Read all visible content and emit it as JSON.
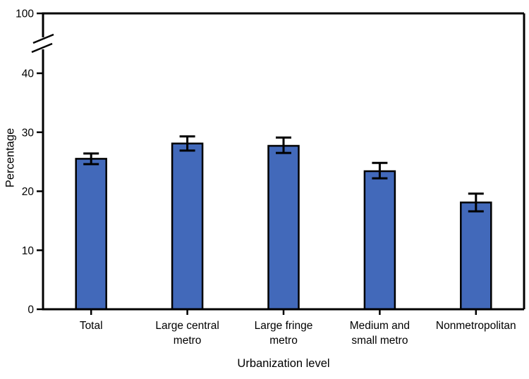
{
  "figure": {
    "background": "#ffffff",
    "bar_fill": "#4269BA",
    "bar_border": "#000000",
    "axis_color": "#000000",
    "text_color": "#000000"
  },
  "chart_data": {
    "type": "bar",
    "xlabel": "Urbanization level",
    "ylabel": "Percentage",
    "categories": [
      "Total",
      "Large central metro",
      "Large fringe metro",
      "Medium and small metro",
      "Nonmetropolitan"
    ],
    "category_label_lines": [
      [
        "Total"
      ],
      [
        "Large central",
        "metro"
      ],
      [
        "Large fringe",
        "metro"
      ],
      [
        "Medium and",
        "small metro"
      ],
      [
        "Nonmetropolitan"
      ]
    ],
    "values": [
      25.5,
      28.1,
      27.7,
      23.4,
      18.1
    ],
    "error_low": [
      24.6,
      26.9,
      26.5,
      22.2,
      16.6
    ],
    "error_high": [
      26.4,
      29.3,
      29.1,
      24.8,
      19.6
    ],
    "y_axis": {
      "ticks": [
        0,
        10,
        20,
        30,
        40
      ],
      "tick_labels": [
        "0",
        "10",
        "20",
        "30",
        "40"
      ],
      "top_tick_label": "100",
      "top_tick_value": 100,
      "axis_break": true,
      "linear_range": [
        0,
        40
      ]
    },
    "grid": false,
    "legend": null
  }
}
